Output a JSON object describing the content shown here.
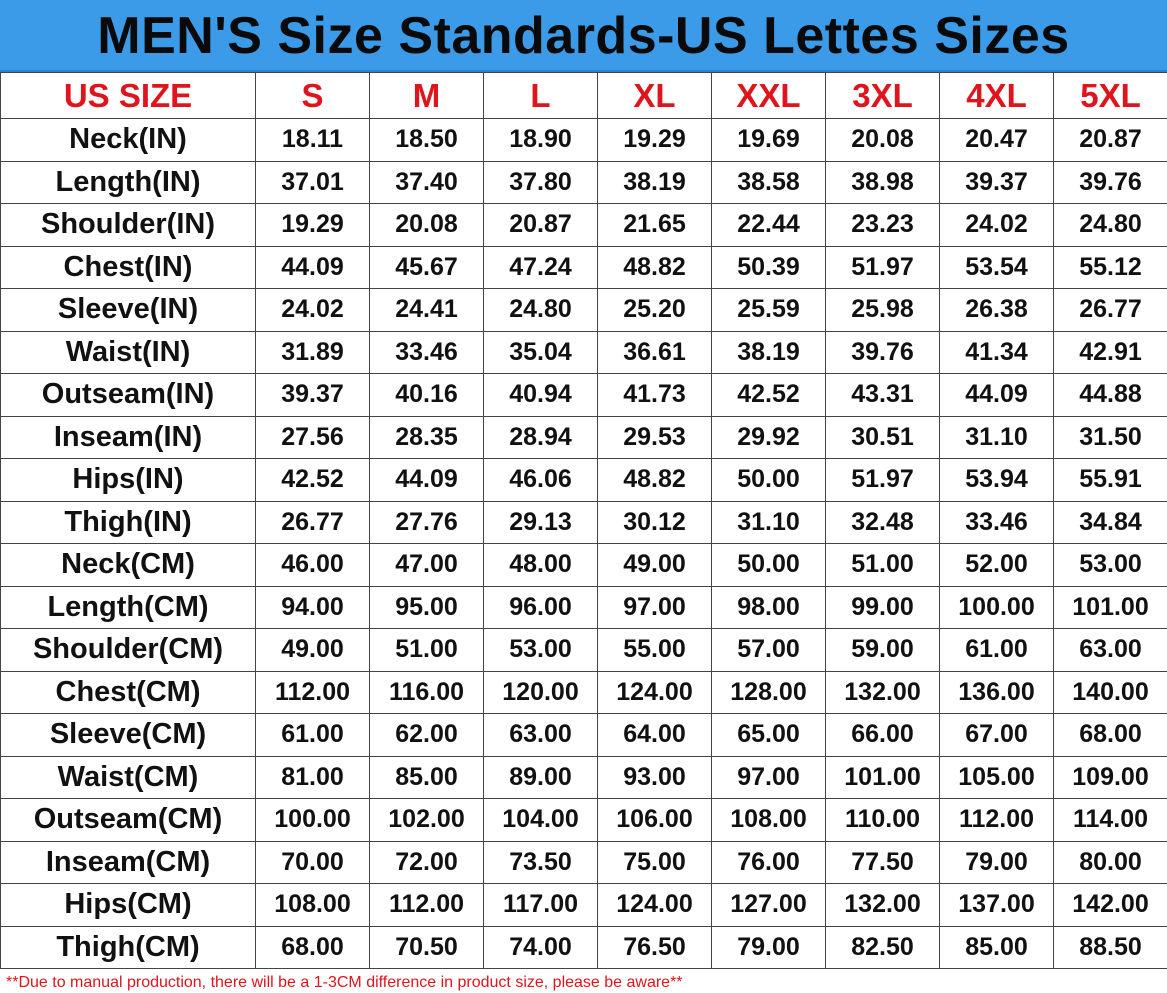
{
  "title": "MEN'S Size Standards-US Lettes Sizes",
  "table": {
    "header": [
      "US SIZE",
      "S",
      "M",
      "L",
      "XL",
      "XXL",
      "3XL",
      "4XL",
      "5XL"
    ],
    "rows": [
      [
        "Neck(IN)",
        "18.11",
        "18.50",
        "18.90",
        "19.29",
        "19.69",
        "20.08",
        "20.47",
        "20.87"
      ],
      [
        "Length(IN)",
        "37.01",
        "37.40",
        "37.80",
        "38.19",
        "38.58",
        "38.98",
        "39.37",
        "39.76"
      ],
      [
        "Shoulder(IN)",
        "19.29",
        "20.08",
        "20.87",
        "21.65",
        "22.44",
        "23.23",
        "24.02",
        "24.80"
      ],
      [
        "Chest(IN)",
        "44.09",
        "45.67",
        "47.24",
        "48.82",
        "50.39",
        "51.97",
        "53.54",
        "55.12"
      ],
      [
        "Sleeve(IN)",
        "24.02",
        "24.41",
        "24.80",
        "25.20",
        "25.59",
        "25.98",
        "26.38",
        "26.77"
      ],
      [
        "Waist(IN)",
        "31.89",
        "33.46",
        "35.04",
        "36.61",
        "38.19",
        "39.76",
        "41.34",
        "42.91"
      ],
      [
        "Outseam(IN)",
        "39.37",
        "40.16",
        "40.94",
        "41.73",
        "42.52",
        "43.31",
        "44.09",
        "44.88"
      ],
      [
        "Inseam(IN)",
        "27.56",
        "28.35",
        "28.94",
        "29.53",
        "29.92",
        "30.51",
        "31.10",
        "31.50"
      ],
      [
        "Hips(IN)",
        "42.52",
        "44.09",
        "46.06",
        "48.82",
        "50.00",
        "51.97",
        "53.94",
        "55.91"
      ],
      [
        "Thigh(IN)",
        "26.77",
        "27.76",
        "29.13",
        "30.12",
        "31.10",
        "32.48",
        "33.46",
        "34.84"
      ],
      [
        "Neck(CM)",
        "46.00",
        "47.00",
        "48.00",
        "49.00",
        "50.00",
        "51.00",
        "52.00",
        "53.00"
      ],
      [
        "Length(CM)",
        "94.00",
        "95.00",
        "96.00",
        "97.00",
        "98.00",
        "99.00",
        "100.00",
        "101.00"
      ],
      [
        "Shoulder(CM)",
        "49.00",
        "51.00",
        "53.00",
        "55.00",
        "57.00",
        "59.00",
        "61.00",
        "63.00"
      ],
      [
        "Chest(CM)",
        "112.00",
        "116.00",
        "120.00",
        "124.00",
        "128.00",
        "132.00",
        "136.00",
        "140.00"
      ],
      [
        "Sleeve(CM)",
        "61.00",
        "62.00",
        "63.00",
        "64.00",
        "65.00",
        "66.00",
        "67.00",
        "68.00"
      ],
      [
        "Waist(CM)",
        "81.00",
        "85.00",
        "89.00",
        "93.00",
        "97.00",
        "101.00",
        "105.00",
        "109.00"
      ],
      [
        "Outseam(CM)",
        "100.00",
        "102.00",
        "104.00",
        "106.00",
        "108.00",
        "110.00",
        "112.00",
        "114.00"
      ],
      [
        "Inseam(CM)",
        "70.00",
        "72.00",
        "73.50",
        "75.00",
        "76.00",
        "77.50",
        "79.00",
        "80.00"
      ],
      [
        "Hips(CM)",
        "108.00",
        "112.00",
        "117.00",
        "124.00",
        "127.00",
        "132.00",
        "137.00",
        "142.00"
      ],
      [
        "Thigh(CM)",
        "68.00",
        "70.50",
        "74.00",
        "76.50",
        "79.00",
        "82.50",
        "85.00",
        "88.50"
      ]
    ]
  },
  "footnote": "**Due to manual production, there will be a 1-3CM difference in product size, please be aware**"
}
